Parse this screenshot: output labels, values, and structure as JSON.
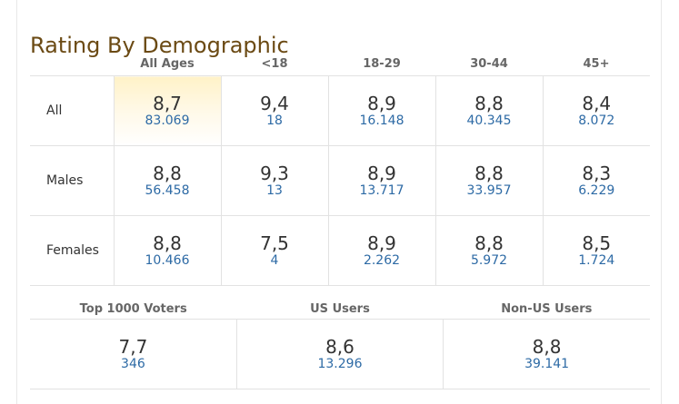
{
  "title": "Rating By Demographic",
  "demographics": {
    "columns": [
      "All Ages",
      "<18",
      "18-29",
      "30-44",
      "45+"
    ],
    "rows": [
      {
        "label": "All",
        "cells": [
          {
            "rating": "8,7",
            "votes": "83.069"
          },
          {
            "rating": "9,4",
            "votes": "18"
          },
          {
            "rating": "8,9",
            "votes": "16.148"
          },
          {
            "rating": "8,8",
            "votes": "40.345"
          },
          {
            "rating": "8,4",
            "votes": "8.072"
          }
        ]
      },
      {
        "label": "Males",
        "cells": [
          {
            "rating": "8,8",
            "votes": "56.458"
          },
          {
            "rating": "9,3",
            "votes": "13"
          },
          {
            "rating": "8,9",
            "votes": "13.717"
          },
          {
            "rating": "8,8",
            "votes": "33.957"
          },
          {
            "rating": "8,3",
            "votes": "6.229"
          }
        ]
      },
      {
        "label": "Females",
        "cells": [
          {
            "rating": "8,8",
            "votes": "10.466"
          },
          {
            "rating": "7,5",
            "votes": "4"
          },
          {
            "rating": "8,9",
            "votes": "2.262"
          },
          {
            "rating": "8,8",
            "votes": "5.972"
          },
          {
            "rating": "8,5",
            "votes": "1.724"
          }
        ]
      }
    ]
  },
  "voter_groups": {
    "columns": [
      "Top 1000 Voters",
      "US Users",
      "Non-US Users"
    ],
    "cells": [
      {
        "rating": "7,7",
        "votes": "346"
      },
      {
        "rating": "8,6",
        "votes": "13.296"
      },
      {
        "rating": "8,8",
        "votes": "39.141"
      }
    ]
  },
  "colors": {
    "title": "#6b4a14",
    "votes_link": "#2d6aa5",
    "highlight": "#fff2c8"
  }
}
